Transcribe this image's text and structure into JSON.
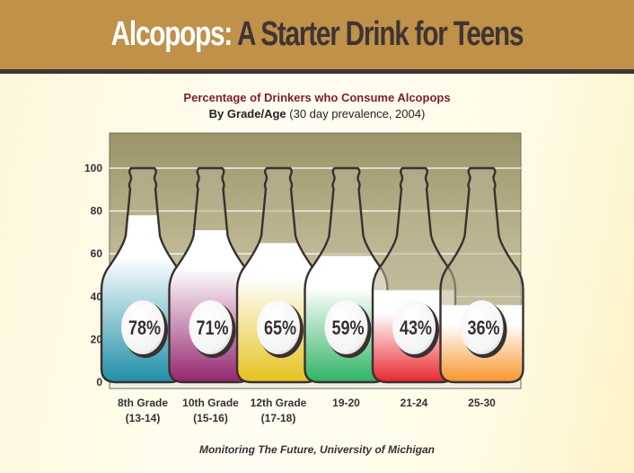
{
  "header": {
    "title_highlight": "Alcopops:",
    "title_rest": " A Starter Drink for Teens",
    "banner_color": "#bf9149"
  },
  "chart_header": {
    "line1": "Percentage of Drinkers who Consume Alcopops",
    "line2_bold": "By Grade/Age",
    "line2_rest": " (30 day prevalence, 2004)"
  },
  "footer": {
    "source": "Monitoring The Future, University of Michigan"
  },
  "chart_data": {
    "type": "bar",
    "title": "Percentage of Drinkers who Consume Alcopops",
    "subtitle": "By Grade/Age (30 day prevalence, 2004)",
    "categories": [
      "8th Grade (13-14)",
      "10th Grade (15-16)",
      "12th Grade (17-18)",
      "19-20",
      "21-24",
      "25-30"
    ],
    "category_lines": [
      [
        "8th Grade",
        "(13-14)"
      ],
      [
        "10th Grade",
        "(15-16)"
      ],
      [
        "12th Grade",
        "(17-18)"
      ],
      [
        "19-20",
        ""
      ],
      [
        "21-24",
        ""
      ],
      [
        "25-30",
        ""
      ]
    ],
    "values": [
      78,
      71,
      65,
      59,
      43,
      36
    ],
    "value_labels": [
      "78%",
      "71%",
      "65%",
      "59%",
      "43%",
      "36%"
    ],
    "colors": [
      "#1f8fa8",
      "#94266e",
      "#e5c21e",
      "#2fb363",
      "#e8262d",
      "#f7952a"
    ],
    "xlabel": "",
    "ylabel": "",
    "ylim": [
      0,
      100
    ],
    "yticks": [
      0,
      20,
      40,
      60,
      80,
      100
    ],
    "grid": true,
    "legend": "none",
    "source": "Monitoring The Future, University of Michigan"
  }
}
